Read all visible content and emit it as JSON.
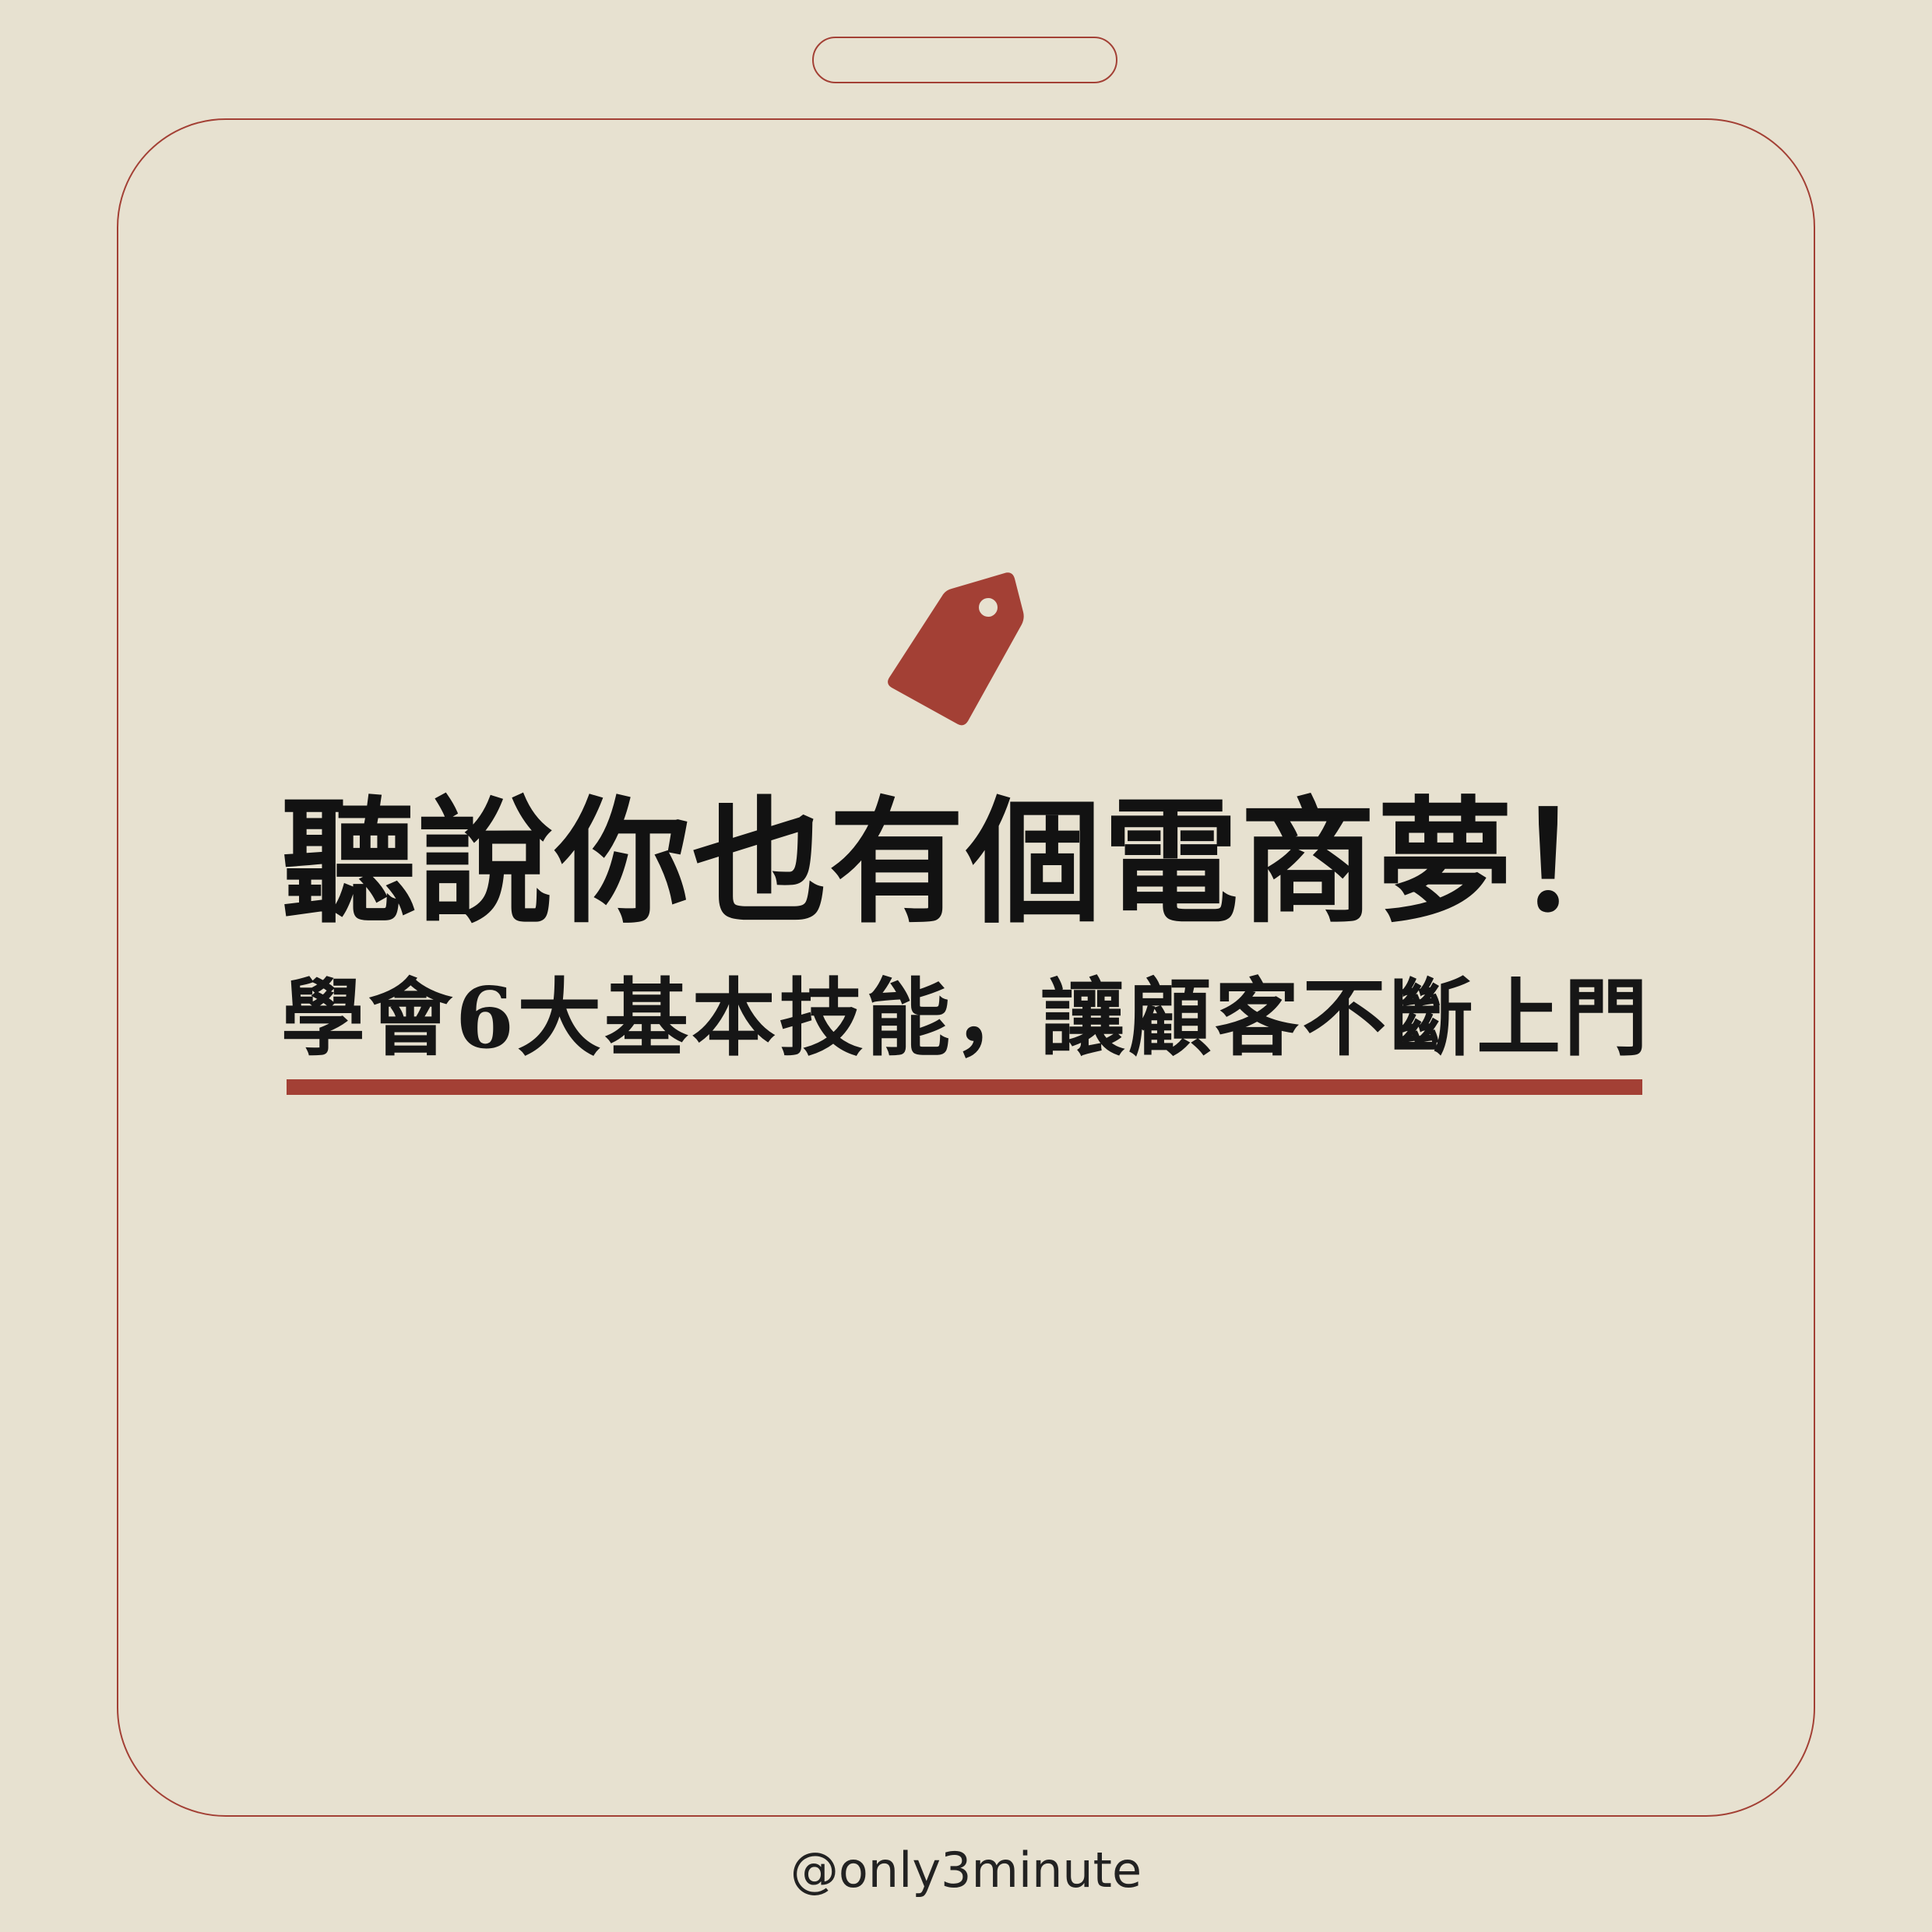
{
  "headline": "聽說你也有個電商夢！",
  "subheadline": "學會6大基本技能，讓顧客不斷上門",
  "handle": "@only3minute",
  "icon": "price-tag-icon",
  "colors": {
    "background": "#e7e1d0",
    "accent": "#a34035",
    "text": "#121212"
  }
}
